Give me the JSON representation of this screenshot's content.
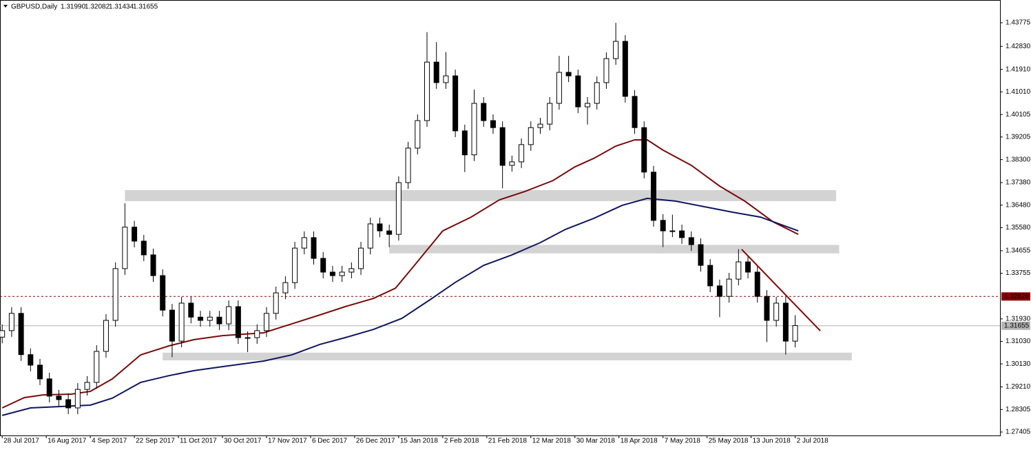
{
  "chart_data": {
    "type": "candlestick",
    "header": {
      "symbol": "GBPUSD,Daily",
      "ohlc": [
        "1.31990",
        "1.32082",
        "1.31434",
        "1.31655"
      ]
    },
    "xlim": [
      -0.7,
      317.1
    ],
    "ylim": [
      1.27267,
      1.44684
    ],
    "xticks": [
      {
        "value": 0,
        "label": "28 Jul 2017"
      },
      {
        "value": 14,
        "label": "16 Aug 2017"
      },
      {
        "value": 28,
        "label": "4 Sep 2017"
      },
      {
        "value": 42,
        "label": "22 Sep 2017"
      },
      {
        "value": 56,
        "label": "11 Oct 2017"
      },
      {
        "value": 70,
        "label": "30 Oct 2017"
      },
      {
        "value": 84,
        "label": "17 Nov 2017"
      },
      {
        "value": 98,
        "label": "6 Dec 2017"
      },
      {
        "value": 112,
        "label": "26 Dec 2017"
      },
      {
        "value": 126,
        "label": "15 Jan 2018"
      },
      {
        "value": 140,
        "label": "2 Feb 2018"
      },
      {
        "value": 154,
        "label": "21 Feb 2018"
      },
      {
        "value": 168,
        "label": "12 Mar 2018"
      },
      {
        "value": 182,
        "label": "30 Mar 2018"
      },
      {
        "value": 196,
        "label": "18 Apr 2018"
      },
      {
        "value": 210,
        "label": "7 May 2018"
      },
      {
        "value": 224,
        "label": "25 May 2018"
      },
      {
        "value": 238,
        "label": "13 Jun 2018"
      },
      {
        "value": 252,
        "label": "2 Jul 2018"
      }
    ],
    "yticks": [
      1.43775,
      {
        "value": 1.4283,
        "label": "1.42830"
      },
      {
        "value": 1.4191,
        "label": "1.41910"
      },
      {
        "value": 1.4101,
        "label": "1.41010"
      },
      1.40105,
      1.39205,
      {
        "value": 1.383,
        "label": "1.38300"
      },
      {
        "value": 1.3738,
        "label": "1.37380"
      },
      {
        "value": 1.3648,
        "label": "1.36480"
      },
      {
        "value": 1.3558,
        "label": "1.35580"
      },
      1.34655,
      1.33755,
      {
        "value": 1.3193,
        "label": "1.31930"
      },
      {
        "value": 1.3103,
        "label": "1.31030"
      },
      {
        "value": 1.3013,
        "label": "1.30130"
      },
      {
        "value": 1.2921,
        "label": "1.29210"
      },
      1.28305,
      1.27405
    ],
    "hlines": [
      {
        "value": 1.32826,
        "color": "#8b0000",
        "dashed": true
      },
      {
        "value": 1.31655,
        "color": "#b4b4b4",
        "dashed": false
      }
    ],
    "up_color": "#ffffff",
    "down_color": "#000000",
    "x": [
      0,
      3,
      6,
      9,
      12,
      15,
      18,
      21,
      24,
      27,
      30,
      33,
      36,
      39,
      42,
      45,
      48,
      51,
      54,
      57,
      60,
      63,
      66,
      69,
      72,
      75,
      78,
      81,
      84,
      87,
      90,
      93,
      96,
      99,
      102,
      105,
      108,
      111,
      114,
      117,
      120,
      123,
      126,
      129,
      132,
      135,
      138,
      141,
      144,
      147,
      150,
      153,
      156,
      159,
      162,
      165,
      168,
      171,
      174,
      177,
      180,
      183,
      186,
      189,
      192,
      195,
      198,
      201,
      204,
      207,
      210,
      213,
      216,
      219,
      222,
      225,
      228,
      231,
      234,
      237,
      240,
      243,
      246,
      249,
      252
    ],
    "candles": [
      [
        1.312,
        1.3171,
        1.3095,
        1.3146
      ],
      [
        1.3146,
        1.324,
        1.3121,
        1.3215
      ],
      [
        1.3215,
        1.324,
        1.3025,
        1.305
      ],
      [
        1.305,
        1.3075,
        1.2983,
        1.3008
      ],
      [
        1.3008,
        1.3033,
        1.2928,
        1.2953
      ],
      [
        1.2953,
        1.2978,
        1.2859,
        1.2884
      ],
      [
        1.2884,
        1.2909,
        1.2845,
        1.287
      ],
      [
        1.287,
        1.2895,
        1.2812,
        1.2837
      ],
      [
        1.2837,
        1.2936,
        1.2812,
        1.2911
      ],
      [
        1.2911,
        1.2964,
        1.2886,
        1.2939
      ],
      [
        1.2939,
        1.3088,
        1.2914,
        1.3063
      ],
      [
        1.3063,
        1.3212,
        1.3038,
        1.3187
      ],
      [
        1.3187,
        1.3419,
        1.3162,
        1.3394
      ],
      [
        1.3394,
        1.3655,
        1.3369,
        1.356
      ],
      [
        1.356,
        1.3585,
        1.3479,
        1.3504
      ],
      [
        1.3504,
        1.3529,
        1.3424,
        1.3449
      ],
      [
        1.3449,
        1.3474,
        1.3341,
        1.3366
      ],
      [
        1.3366,
        1.3391,
        1.3203,
        1.3228
      ],
      [
        1.3228,
        1.3253,
        1.304,
        1.3104
      ],
      [
        1.3104,
        1.3281,
        1.3079,
        1.3256
      ],
      [
        1.3256,
        1.3281,
        1.3175,
        1.32
      ],
      [
        1.32,
        1.3225,
        1.3162,
        1.3187
      ],
      [
        1.3187,
        1.3225,
        1.3162,
        1.32
      ],
      [
        1.32,
        1.3225,
        1.3148,
        1.3173
      ],
      [
        1.3173,
        1.3267,
        1.3148,
        1.3242
      ],
      [
        1.3242,
        1.3267,
        1.3093,
        1.3118
      ],
      [
        1.3118,
        1.3143,
        1.306,
        1.3118
      ],
      [
        1.3118,
        1.3171,
        1.3093,
        1.3146
      ],
      [
        1.3146,
        1.324,
        1.3121,
        1.3215
      ],
      [
        1.3215,
        1.3322,
        1.319,
        1.3297
      ],
      [
        1.3297,
        1.3363,
        1.3272,
        1.3338
      ],
      [
        1.3338,
        1.3501,
        1.3313,
        1.3476
      ],
      [
        1.3476,
        1.3543,
        1.3451,
        1.3518
      ],
      [
        1.3518,
        1.3543,
        1.341,
        1.3435
      ],
      [
        1.3435,
        1.346,
        1.3355,
        1.338
      ],
      [
        1.338,
        1.3405,
        1.3341,
        1.3366
      ],
      [
        1.3366,
        1.3405,
        1.3341,
        1.338
      ],
      [
        1.338,
        1.3419,
        1.3355,
        1.3394
      ],
      [
        1.3394,
        1.3501,
        1.3369,
        1.3476
      ],
      [
        1.3476,
        1.3598,
        1.3451,
        1.3573
      ],
      [
        1.3573,
        1.3598,
        1.352,
        1.3545
      ],
      [
        1.3545,
        1.357,
        1.348,
        1.3531
      ],
      [
        1.3531,
        1.3763,
        1.3506,
        1.3738
      ],
      [
        1.3738,
        1.3901,
        1.3713,
        1.3876
      ],
      [
        1.3876,
        1.4011,
        1.3851,
        1.3986
      ],
      [
        1.3986,
        1.434,
        1.3961,
        1.422
      ],
      [
        1.422,
        1.43,
        1.4113,
        1.4138
      ],
      [
        1.4138,
        1.426,
        1.4113,
        1.4165
      ],
      [
        1.4165,
        1.419,
        1.392,
        1.3945
      ],
      [
        1.3945,
        1.397,
        1.378,
        1.3849
      ],
      [
        1.3849,
        1.411,
        1.3824,
        1.4055
      ],
      [
        1.4055,
        1.408,
        1.3961,
        1.3986
      ],
      [
        1.3986,
        1.4011,
        1.3933,
        1.3958
      ],
      [
        1.3958,
        1.3983,
        1.3715,
        1.3807
      ],
      [
        1.3807,
        1.3846,
        1.3782,
        1.3821
      ],
      [
        1.3821,
        1.3915,
        1.3796,
        1.389
      ],
      [
        1.389,
        1.3983,
        1.3865,
        1.3958
      ],
      [
        1.3958,
        1.3997,
        1.3933,
        1.3972
      ],
      [
        1.3972,
        1.408,
        1.3947,
        1.4055
      ],
      [
        1.4055,
        1.4245,
        1.403,
        1.4179
      ],
      [
        1.4179,
        1.4245,
        1.414,
        1.4165
      ],
      [
        1.4165,
        1.419,
        1.4016,
        1.4041
      ],
      [
        1.4041,
        1.408,
        1.397,
        1.4055
      ],
      [
        1.4055,
        1.4163,
        1.403,
        1.4138
      ],
      [
        1.4138,
        1.4259,
        1.4113,
        1.4234
      ],
      [
        1.4234,
        1.4377,
        1.4209,
        1.4303
      ],
      [
        1.4303,
        1.4328,
        1.4058,
        1.4083
      ],
      [
        1.4083,
        1.4108,
        1.3933,
        1.3958
      ],
      [
        1.3958,
        1.3983,
        1.3755,
        1.378
      ],
      [
        1.378,
        1.3805,
        1.3562,
        1.3587
      ],
      [
        1.3587,
        1.3612,
        1.348,
        1.3545
      ],
      [
        1.3545,
        1.361,
        1.352,
        1.3545
      ],
      [
        1.3545,
        1.357,
        1.3493,
        1.3518
      ],
      [
        1.3518,
        1.3543,
        1.3465,
        1.349
      ],
      [
        1.349,
        1.3515,
        1.3382,
        1.3407
      ],
      [
        1.3407,
        1.3432,
        1.33,
        1.3325
      ],
      [
        1.3325,
        1.335,
        1.32,
        1.3283
      ],
      [
        1.3283,
        1.3377,
        1.3258,
        1.3352
      ],
      [
        1.3352,
        1.3472,
        1.3327,
        1.3421
      ],
      [
        1.3421,
        1.3446,
        1.3355,
        1.338
      ],
      [
        1.338,
        1.3405,
        1.3258,
        1.3283
      ],
      [
        1.3283,
        1.3308,
        1.31,
        1.3187
      ],
      [
        1.3187,
        1.3281,
        1.3162,
        1.3256
      ],
      [
        1.3256,
        1.3281,
        1.305,
        1.3104
      ],
      [
        1.3104,
        1.3208,
        1.3079,
        1.3166
      ]
    ],
    "overlays": [
      {
        "color": "#7a0a0a",
        "x": [
          0,
          7,
          13,
          22,
          28,
          35,
          44,
          53,
          61,
          70,
          83,
          92,
          101,
          109,
          118,
          125,
          131,
          140,
          149,
          158,
          166,
          175,
          182,
          188,
          195,
          201,
          205,
          210,
          219,
          228,
          236,
          245,
          253
        ],
        "values": [
          1.2837,
          1.2878,
          1.2889,
          1.2892,
          1.2903,
          1.2953,
          1.3049,
          1.3085,
          1.311,
          1.3126,
          1.3137,
          1.3173,
          1.3209,
          1.3242,
          1.3275,
          1.3316,
          1.3407,
          1.3545,
          1.36,
          1.3669,
          1.3702,
          1.3746,
          1.3801,
          1.3835,
          1.3884,
          1.3909,
          1.3909,
          1.3868,
          1.3807,
          1.3724,
          1.3664,
          1.3581,
          1.3531
        ]
      },
      {
        "color": "#101560",
        "x": [
          0,
          9,
          18,
          28,
          35,
          44,
          53,
          61,
          70,
          83,
          92,
          101,
          109,
          118,
          127,
          136,
          144,
          153,
          162,
          171,
          179,
          188,
          197,
          205,
          214,
          223,
          232,
          241,
          253
        ],
        "values": [
          1.2807,
          1.2837,
          1.2842,
          1.2848,
          1.2876,
          1.2939,
          1.2966,
          1.2986,
          1.3002,
          1.3024,
          1.3049,
          1.3091,
          1.3118,
          1.3151,
          1.3195,
          1.327,
          1.3339,
          1.3407,
          1.3449,
          1.3498,
          1.3551,
          1.3595,
          1.3647,
          1.3675,
          1.3664,
          1.3642,
          1.362,
          1.36,
          1.3545
        ]
      }
    ],
    "trendline": {
      "color": "#8b0000",
      "x": [
        235,
        260
      ],
      "values": [
        1.3471,
        1.3145
      ]
    },
    "zones": [
      {
        "x": [
          39,
          265
        ],
        "values": [
          1.3708,
          1.3664
        ]
      },
      {
        "x": [
          123,
          266
        ],
        "values": [
          1.3489,
          1.3455
        ]
      },
      {
        "x": [
          51,
          270
        ],
        "values": [
          1.3058,
          1.3027
        ]
      }
    ],
    "zone_color": "#d3d3d3"
  }
}
